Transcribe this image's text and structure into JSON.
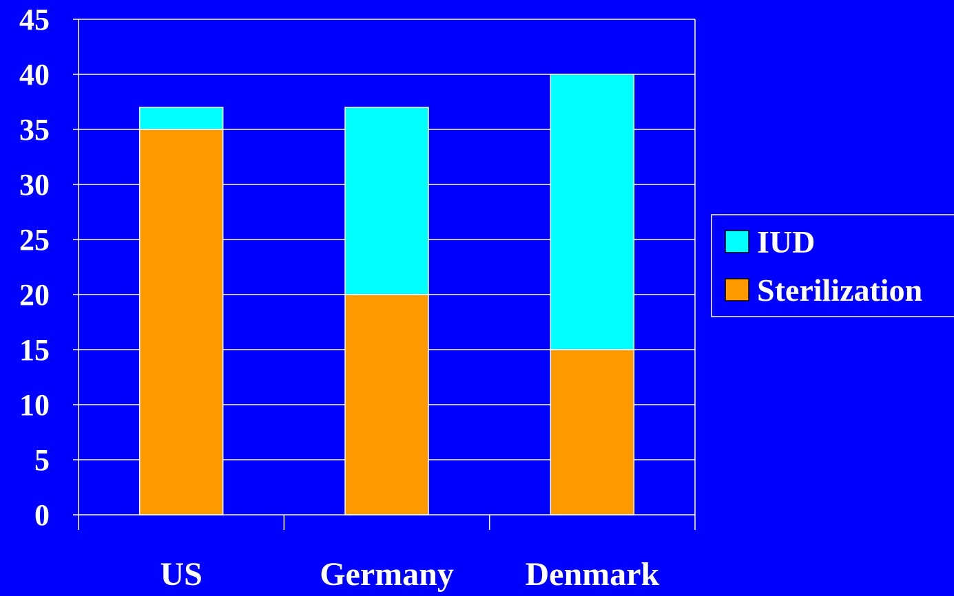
{
  "chart_data": {
    "type": "bar",
    "stacked": true,
    "categories": [
      "US",
      "Germany",
      "Denmark"
    ],
    "series": [
      {
        "name": "Sterilization",
        "values": [
          35,
          20,
          15
        ]
      },
      {
        "name": "IUD",
        "values": [
          2,
          17,
          25
        ]
      }
    ],
    "ylim": [
      0,
      45
    ],
    "yticks": [
      "0",
      "5",
      "10",
      "15",
      "20",
      "25",
      "30",
      "35",
      "40",
      "45"
    ],
    "grid": true,
    "legend": "right",
    "colors": {
      "background": "#0000FF",
      "Sterilization": "#FF9900",
      "IUD": "#00FFFF",
      "axis": "#FFFFFF"
    }
  }
}
